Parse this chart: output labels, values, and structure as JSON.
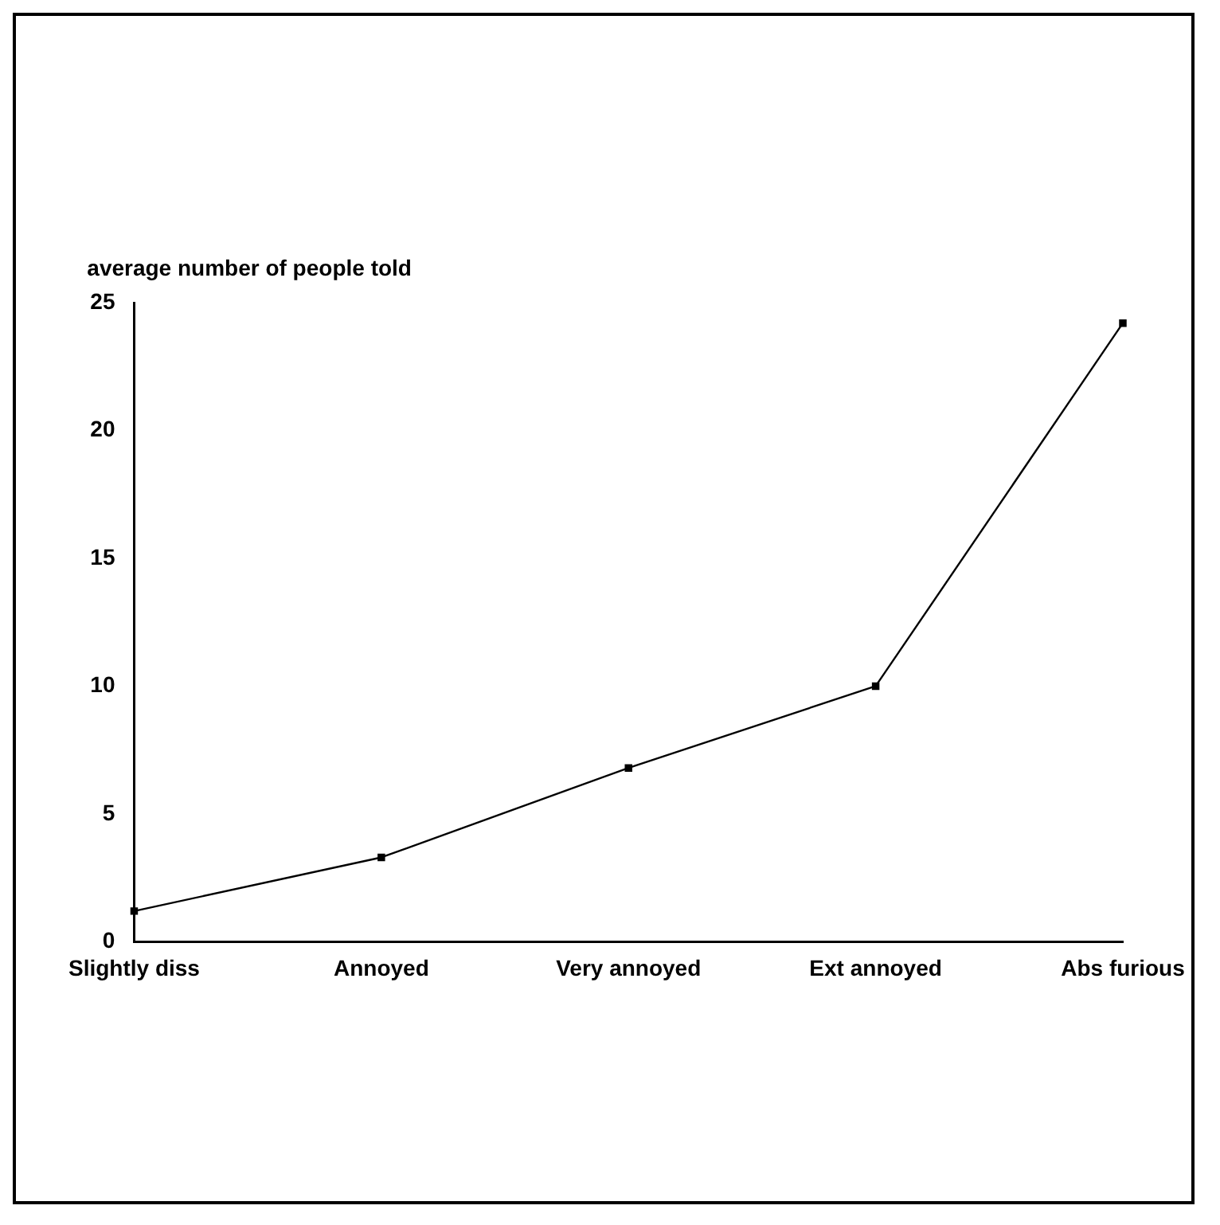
{
  "chart_data": {
    "type": "line",
    "ylabel": "average number of people told",
    "categories": [
      "Slightly diss",
      "Annoyed",
      "Very annoyed",
      "Ext annoyed",
      "Abs furious"
    ],
    "series": [
      {
        "color": "#000000",
        "values": [
          1.2,
          3.3,
          6.8,
          10,
          24.2
        ]
      }
    ],
    "ylim": [
      0,
      25
    ],
    "yticks": [
      0,
      5,
      10,
      15,
      20,
      25
    ],
    "grid": false,
    "legend": false,
    "marker": "square",
    "line_style": "solid"
  }
}
